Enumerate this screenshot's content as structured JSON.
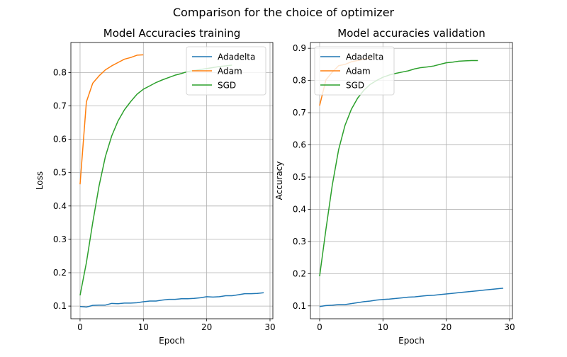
{
  "figure": {
    "suptitle": "Comparison for the choice of optimizer"
  },
  "colors": {
    "Adadelta": "#1f77b4",
    "Adam": "#ff7f0e",
    "SGD": "#2ca02c",
    "grid": "#b0b0b0",
    "axis": "#000000"
  },
  "chart_data": [
    {
      "type": "line",
      "title": "Model Accuracies training",
      "xlabel": "Epoch",
      "ylabel": "Loss",
      "xlim": [
        -1.45,
        30.45
      ],
      "ylim": [
        0.062,
        0.89
      ],
      "xticks": [
        0,
        10,
        20,
        30
      ],
      "yticks": [
        0.1,
        0.2,
        0.3,
        0.4,
        0.5,
        0.6,
        0.7,
        0.8
      ],
      "ytick_labels": [
        "0.1",
        "0.2",
        "0.3",
        "0.4",
        "0.5",
        "0.6",
        "0.7",
        "0.8"
      ],
      "grid": true,
      "legend": {
        "position": "upper right",
        "entries": [
          "Adadelta",
          "Adam",
          "SGD"
        ]
      },
      "series": [
        {
          "name": "Adadelta",
          "x": [
            0,
            1,
            2,
            3,
            4,
            5,
            6,
            7,
            8,
            9,
            10,
            11,
            12,
            13,
            14,
            15,
            16,
            17,
            18,
            19,
            20,
            21,
            22,
            23,
            24,
            25,
            26,
            27,
            28,
            29
          ],
          "y": [
            0.099,
            0.097,
            0.102,
            0.103,
            0.103,
            0.108,
            0.107,
            0.109,
            0.109,
            0.11,
            0.113,
            0.115,
            0.115,
            0.118,
            0.12,
            0.12,
            0.122,
            0.122,
            0.123,
            0.125,
            0.128,
            0.127,
            0.128,
            0.131,
            0.131,
            0.134,
            0.137,
            0.137,
            0.138,
            0.14
          ]
        },
        {
          "name": "Adam",
          "x": [
            0,
            1,
            2,
            3,
            4,
            5,
            6,
            7,
            8,
            9,
            10
          ],
          "y": [
            0.465,
            0.712,
            0.768,
            0.79,
            0.808,
            0.82,
            0.83,
            0.84,
            0.845,
            0.852,
            0.853
          ]
        },
        {
          "name": "SGD",
          "x": [
            0,
            1,
            2,
            3,
            4,
            5,
            6,
            7,
            8,
            9,
            10,
            11,
            12,
            13,
            14,
            15,
            16,
            17,
            18,
            19,
            20,
            21,
            22,
            23,
            24
          ],
          "y": [
            0.132,
            0.23,
            0.35,
            0.46,
            0.548,
            0.61,
            0.655,
            0.688,
            0.713,
            0.735,
            0.75,
            0.76,
            0.77,
            0.778,
            0.785,
            0.792,
            0.797,
            0.803,
            0.806,
            0.809,
            0.812,
            0.815,
            0.818,
            0.82,
            0.822
          ]
        }
      ]
    },
    {
      "type": "line",
      "title": "Model accuracies validation",
      "xlabel": "Epoch",
      "ylabel": "Accuracy",
      "xlim": [
        -1.45,
        30.45
      ],
      "ylim": [
        0.06,
        0.918
      ],
      "xticks": [
        0,
        10,
        20,
        30
      ],
      "yticks": [
        0.1,
        0.2,
        0.3,
        0.4,
        0.5,
        0.6,
        0.7,
        0.8,
        0.9
      ],
      "ytick_labels": [
        "0.1",
        "0.2",
        "0.3",
        "0.4",
        "0.5",
        "0.6",
        "0.7",
        "0.8",
        "0.9"
      ],
      "grid": true,
      "legend": {
        "position": "upper left",
        "entries": [
          "Adadelta",
          "Adam",
          "SGD"
        ]
      },
      "series": [
        {
          "name": "Adadelta",
          "x": [
            0,
            1,
            2,
            3,
            4,
            5,
            6,
            7,
            8,
            9,
            10,
            11,
            12,
            13,
            14,
            15,
            16,
            17,
            18,
            19,
            20,
            21,
            22,
            23,
            24,
            25,
            26,
            27,
            28,
            29
          ],
          "y": [
            0.098,
            0.101,
            0.102,
            0.104,
            0.104,
            0.107,
            0.11,
            0.113,
            0.115,
            0.118,
            0.12,
            0.121,
            0.123,
            0.125,
            0.127,
            0.128,
            0.13,
            0.132,
            0.133,
            0.135,
            0.137,
            0.139,
            0.141,
            0.143,
            0.145,
            0.147,
            0.149,
            0.151,
            0.153,
            0.155
          ]
        },
        {
          "name": "Adam",
          "x": [
            0,
            1,
            2,
            3,
            4,
            5,
            6,
            7,
            8
          ],
          "y": [
            0.722,
            0.802,
            0.826,
            0.846,
            0.85,
            0.858,
            0.862,
            0.866,
            0.87
          ]
        },
        {
          "name": "SGD",
          "x": [
            0,
            1,
            2,
            3,
            4,
            5,
            6,
            7,
            8,
            9,
            10,
            11,
            12,
            13,
            14,
            15,
            16,
            17,
            18,
            19,
            20,
            21,
            22,
            23,
            24,
            25
          ],
          "y": [
            0.192,
            0.338,
            0.475,
            0.585,
            0.66,
            0.71,
            0.745,
            0.77,
            0.788,
            0.8,
            0.81,
            0.817,
            0.822,
            0.826,
            0.83,
            0.836,
            0.84,
            0.842,
            0.845,
            0.85,
            0.855,
            0.857,
            0.86,
            0.861,
            0.862,
            0.862
          ]
        }
      ]
    }
  ]
}
